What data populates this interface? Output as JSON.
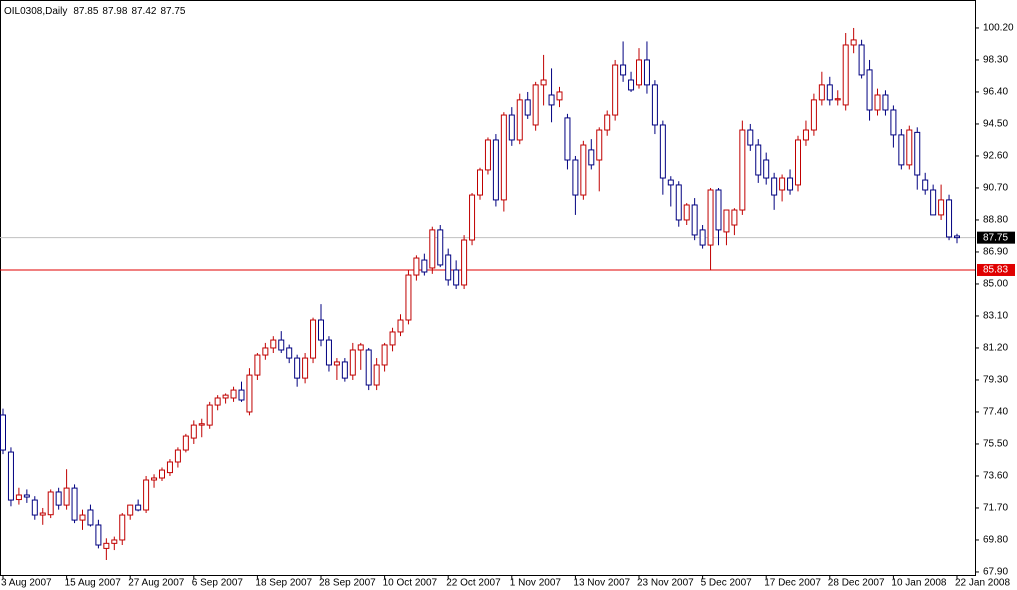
{
  "chart_data": {
    "type": "candlestick",
    "title": "OIL0308,Daily",
    "categories": [
      "3 Aug 2007",
      null,
      null,
      null,
      null,
      null,
      null,
      null,
      "15 Aug 2007",
      null,
      null,
      null,
      null,
      null,
      null,
      null,
      "27 Aug 2007",
      null,
      null,
      null,
      null,
      null,
      null,
      null,
      "6 Sep 2007",
      null,
      null,
      null,
      null,
      null,
      null,
      null,
      "18 Sep 2007",
      null,
      null,
      null,
      null,
      null,
      null,
      null,
      "28 Sep 2007",
      null,
      null,
      null,
      null,
      null,
      null,
      null,
      "10 Oct 2007",
      null,
      null,
      null,
      null,
      null,
      null,
      null,
      "22 Oct 2007",
      null,
      null,
      null,
      null,
      null,
      null,
      null,
      "1 Nov 2007",
      null,
      null,
      null,
      null,
      null,
      null,
      null,
      "13 Nov 2007",
      null,
      null,
      null,
      null,
      null,
      null,
      null,
      "23 Nov 2007",
      null,
      null,
      null,
      null,
      null,
      null,
      null,
      "5 Dec 2007",
      null,
      null,
      null,
      null,
      null,
      null,
      null,
      "17 Dec 2007",
      null,
      null,
      null,
      null,
      null,
      null,
      null,
      "28 Dec 2007",
      null,
      null,
      null,
      null,
      null,
      null,
      null,
      "10 Jan 2008",
      null,
      null,
      null,
      null,
      null,
      null,
      null,
      "22 Jan 2008"
    ],
    "open": [
      77.22,
      75.02,
      72.2,
      72.47,
      72.17,
      71.28,
      71.3,
      72.65,
      71.87,
      72.88,
      70.98,
      71.58,
      70.69,
      69.3,
      69.6,
      69.8,
      71.28,
      71.87,
      71.58,
      73.36,
      73.48,
      73.8,
      74.43,
      75.14,
      75.85,
      76.62,
      76.62,
      77.81,
      78.23,
      78.23,
      78.7,
      77.4,
      79.59,
      80.78,
      81.2,
      81.67,
      81.2,
      80.6,
      79.41,
      80.6,
      82.86,
      81.67,
      80.19,
      80.37,
      79.59,
      81.08,
      81.08,
      79.0,
      80.19,
      81.38,
      82.15,
      82.86,
      85.53,
      86.42,
      85.95,
      88.21,
      86.72,
      85.83,
      84.94,
      87.61,
      90.28,
      91.77,
      93.55,
      89.99,
      95.03,
      93.55,
      95.93,
      94.44,
      96.82,
      96.22,
      95.93,
      94.86,
      92.36,
      90.28,
      92.96,
      92.36,
      94.14,
      95.03,
      98.0,
      97.11,
      96.82,
      98.3,
      96.82,
      94.44,
      91.17,
      90.88,
      88.8,
      89.69,
      88.21,
      87.31,
      90.58,
      88.09,
      88.5,
      89.39,
      94.14,
      93.25,
      92.36,
      91.29,
      90.58,
      91.29,
      90.88,
      93.55,
      94.14,
      95.93,
      96.82,
      95.93,
      95.63,
      99.19,
      99.19,
      97.71,
      95.33,
      96.22,
      95.33,
      93.85,
      92.07,
      94.0,
      91.17,
      90.58,
      89.1,
      89.99,
      87.85
    ],
    "high": [
      77.6,
      75.3,
      72.9,
      72.8,
      72.4,
      71.7,
      72.8,
      72.9,
      74.0,
      73.1,
      71.6,
      71.9,
      71.0,
      69.9,
      70.0,
      71.4,
      71.9,
      72.2,
      73.6,
      73.7,
      74.1,
      74.6,
      75.3,
      76.1,
      76.9,
      77.0,
      78.0,
      78.4,
      78.5,
      78.9,
      79.2,
      80.0,
      80.9,
      81.5,
      81.9,
      82.2,
      81.4,
      80.8,
      80.9,
      83.0,
      83.8,
      81.9,
      80.6,
      80.6,
      81.5,
      81.5,
      81.2,
      80.6,
      81.5,
      82.4,
      83.2,
      85.8,
      86.7,
      86.8,
      88.4,
      88.5,
      87.1,
      86.4,
      87.9,
      90.4,
      91.9,
      93.7,
      93.9,
      95.2,
      95.5,
      96.3,
      96.4,
      97.0,
      98.6,
      97.8,
      96.7,
      95.1,
      92.6,
      93.5,
      93.6,
      94.3,
      95.3,
      98.3,
      99.4,
      97.6,
      99.0,
      99.4,
      97.1,
      94.7,
      91.4,
      91.1,
      89.8,
      90.1,
      88.5,
      90.7,
      90.7,
      89.2,
      89.5,
      94.7,
      94.5,
      93.6,
      92.8,
      91.6,
      91.5,
      91.8,
      93.8,
      94.7,
      96.3,
      97.6,
      97.3,
      96.5,
      99.9,
      100.2,
      99.5,
      98.3,
      96.6,
      96.5,
      95.6,
      94.2,
      94.4,
      94.3,
      91.6,
      90.9,
      90.9,
      90.3,
      87.98
    ],
    "low": [
      74.9,
      71.8,
      71.9,
      72.0,
      71.0,
      70.7,
      71.1,
      71.6,
      71.6,
      70.8,
      70.4,
      70.6,
      69.3,
      68.61,
      69.2,
      69.5,
      71.0,
      71.5,
      71.4,
      72.9,
      73.3,
      73.6,
      74.1,
      75.0,
      75.5,
      75.9,
      76.4,
      77.5,
      77.9,
      78.0,
      78.0,
      77.2,
      79.3,
      80.5,
      80.9,
      80.9,
      80.3,
      78.9,
      79.1,
      80.3,
      81.3,
      79.8,
      79.3,
      79.2,
      79.3,
      79.9,
      78.7,
      78.7,
      79.8,
      81.0,
      81.9,
      82.6,
      85.2,
      85.5,
      85.6,
      86.0,
      84.9,
      84.7,
      84.7,
      87.3,
      90.0,
      91.5,
      89.6,
      89.3,
      93.2,
      93.3,
      94.8,
      94.1,
      95.6,
      94.6,
      95.5,
      91.8,
      89.1,
      90.0,
      91.8,
      90.5,
      93.8,
      94.7,
      97.0,
      96.4,
      96.6,
      96.3,
      93.9,
      90.3,
      89.6,
      88.4,
      88.5,
      87.6,
      87.1,
      85.8,
      87.3,
      87.3,
      87.9,
      89.1,
      92.9,
      91.0,
      90.9,
      89.4,
      89.9,
      90.3,
      90.5,
      93.2,
      93.8,
      95.6,
      95.6,
      95.6,
      95.3,
      98.7,
      97.2,
      94.7,
      95.0,
      95.0,
      93.1,
      91.8,
      91.8,
      90.6,
      90.3,
      89.1,
      88.8,
      87.6,
      87.42
    ],
    "close": [
      75.14,
      72.17,
      72.47,
      72.35,
      71.28,
      71.4,
      72.65,
      71.87,
      72.88,
      70.98,
      71.28,
      70.69,
      69.5,
      69.6,
      69.8,
      71.28,
      71.87,
      71.58,
      73.36,
      73.48,
      73.95,
      74.43,
      75.14,
      75.97,
      76.62,
      76.7,
      77.81,
      78.23,
      78.4,
      78.7,
      78.11,
      79.59,
      80.78,
      81.2,
      81.67,
      81.08,
      80.6,
      79.41,
      80.6,
      82.86,
      81.67,
      80.19,
      80.37,
      79.41,
      81.08,
      81.38,
      79.0,
      80.19,
      81.38,
      82.15,
      82.86,
      85.53,
      86.54,
      85.71,
      88.21,
      86.13,
      85.24,
      84.94,
      87.61,
      90.28,
      91.77,
      93.55,
      89.99,
      95.03,
      93.55,
      95.93,
      95.03,
      96.82,
      97.11,
      95.63,
      96.4,
      92.36,
      90.28,
      93.25,
      92.07,
      94.14,
      95.03,
      98.0,
      97.41,
      96.52,
      98.3,
      96.82,
      94.44,
      91.29,
      90.88,
      88.8,
      89.69,
      87.91,
      87.31,
      90.58,
      88.21,
      89.39,
      89.39,
      94.14,
      93.25,
      91.47,
      91.29,
      90.28,
      91.29,
      90.58,
      93.55,
      94.14,
      95.93,
      96.82,
      95.93,
      96.0,
      99.19,
      99.49,
      97.41,
      95.33,
      96.22,
      95.33,
      93.85,
      92.07,
      94.14,
      91.47,
      90.58,
      89.1,
      89.99,
      87.79,
      87.75
    ],
    "up_color": "#c00000",
    "down_color": "#000080",
    "ylim": [
      67.72,
      101.86
    ],
    "yticks": [
      {
        "value": 100.2,
        "label": "100.20"
      },
      {
        "value": 98.3,
        "label": "98.30"
      },
      {
        "value": 96.4,
        "label": "96.40"
      },
      {
        "value": 94.5,
        "label": "94.50"
      },
      {
        "value": 92.6,
        "label": "92.60"
      },
      {
        "value": 90.7,
        "label": "90.70"
      },
      {
        "value": 88.8,
        "label": "88.80"
      },
      {
        "value": 86.9,
        "label": "86.90"
      },
      {
        "value": 85,
        "label": "85.00"
      },
      {
        "value": 83.1,
        "label": "83.10"
      },
      {
        "value": 81.2,
        "label": "81.20"
      },
      {
        "value": 79.3,
        "label": "79.30"
      },
      {
        "value": 77.4,
        "label": "77.40"
      },
      {
        "value": 75.5,
        "label": "75.50"
      },
      {
        "value": 73.6,
        "label": "73.60"
      },
      {
        "value": 71.7,
        "label": "71.70"
      },
      {
        "value": 69.8,
        "label": "69.80"
      },
      {
        "value": 67.9,
        "label": "67.90"
      }
    ],
    "level": {
      "value": 85.83,
      "color": "#e00000"
    },
    "last_price_color": "#c0c0c0"
  }
}
